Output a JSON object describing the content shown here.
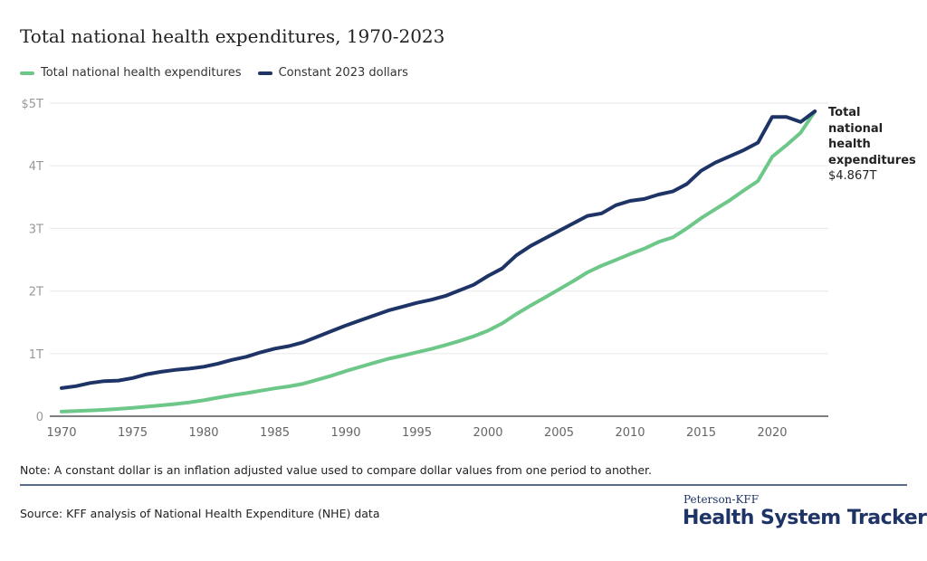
{
  "chart_data": {
    "type": "line",
    "title": "Total national health expenditures, 1970-2023",
    "xlabel": "",
    "ylabel": "",
    "xlim": [
      1970,
      2023
    ],
    "ylim": [
      0,
      5
    ],
    "grid": true,
    "legend_placement": "top-left",
    "x_ticks": [
      "1970",
      "1975",
      "1980",
      "1985",
      "1990",
      "1995",
      "2000",
      "2005",
      "2010",
      "2015",
      "2020"
    ],
    "y_ticks": [
      "0",
      "1T",
      "2T",
      "3T",
      "4T",
      "$5T"
    ],
    "x": [
      1970,
      1971,
      1972,
      1973,
      1974,
      1975,
      1976,
      1977,
      1978,
      1979,
      1980,
      1981,
      1982,
      1983,
      1984,
      1985,
      1986,
      1987,
      1988,
      1989,
      1990,
      1991,
      1992,
      1993,
      1994,
      1995,
      1996,
      1997,
      1998,
      1999,
      2000,
      2001,
      2002,
      2003,
      2004,
      2005,
      2006,
      2007,
      2008,
      2009,
      2010,
      2011,
      2012,
      2013,
      2014,
      2015,
      2016,
      2017,
      2018,
      2019,
      2020,
      2021,
      2022,
      2023
    ],
    "series": [
      {
        "name": "Total national health expenditures",
        "color": "#6cc788",
        "values": [
          0.074,
          0.082,
          0.092,
          0.103,
          0.117,
          0.133,
          0.153,
          0.174,
          0.195,
          0.221,
          0.255,
          0.296,
          0.335,
          0.369,
          0.407,
          0.445,
          0.477,
          0.519,
          0.582,
          0.648,
          0.721,
          0.788,
          0.854,
          0.917,
          0.967,
          1.022,
          1.074,
          1.136,
          1.202,
          1.278,
          1.366,
          1.482,
          1.632,
          1.767,
          1.895,
          2.026,
          2.157,
          2.297,
          2.404,
          2.496,
          2.59,
          2.677,
          2.783,
          2.856,
          3.001,
          3.164,
          3.306,
          3.447,
          3.605,
          3.757,
          4.144,
          4.328,
          4.528,
          4.867
        ]
      },
      {
        "name": "Constant 2023 dollars",
        "color": "#1f3466",
        "values": [
          0.45,
          0.48,
          0.53,
          0.56,
          0.57,
          0.61,
          0.67,
          0.71,
          0.74,
          0.76,
          0.79,
          0.84,
          0.9,
          0.95,
          1.02,
          1.08,
          1.12,
          1.18,
          1.27,
          1.36,
          1.45,
          1.53,
          1.61,
          1.69,
          1.75,
          1.81,
          1.86,
          1.92,
          2.01,
          2.1,
          2.24,
          2.36,
          2.57,
          2.72,
          2.84,
          2.96,
          3.08,
          3.2,
          3.24,
          3.37,
          3.44,
          3.47,
          3.54,
          3.59,
          3.71,
          3.92,
          4.05,
          4.15,
          4.25,
          4.37,
          4.78,
          4.78,
          4.7,
          4.87
        ]
      }
    ],
    "annotation": {
      "label": "Total national health expenditures",
      "value": "$4.867T"
    }
  },
  "note": "Note: A constant dollar is an inflation adjusted value used to compare dollar values from one period to another.",
  "source": "Source: KFF analysis of National Health Expenditure (NHE) data",
  "logo": {
    "top": "Peterson-KFF",
    "main": "Health System Tracker"
  }
}
